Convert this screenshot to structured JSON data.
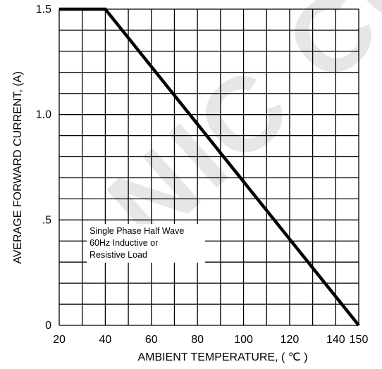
{
  "chart_data": {
    "type": "line",
    "title": "",
    "xlabel": "AMBIENT TEMPERATURE, ( ℃ )",
    "ylabel": "AVERAGE FORWARD CURRENT, (A)",
    "xlim": [
      20,
      150
    ],
    "ylim": [
      0,
      1.5
    ],
    "x_tick_labels": [
      "20",
      "40",
      "60",
      "80",
      "100",
      "120",
      "140",
      "150"
    ],
    "x_tick_values": [
      20,
      40,
      60,
      80,
      100,
      120,
      140,
      150
    ],
    "y_tick_labels": [
      "0",
      ".5",
      "1.0",
      "1.5"
    ],
    "y_tick_values": [
      0,
      0.5,
      1.0,
      1.5
    ],
    "grid": true,
    "series": [
      {
        "x": [
          20,
          40,
          150
        ],
        "y": [
          1.5,
          1.5,
          0
        ]
      }
    ],
    "annotation": [
      "Single Phase Half Wave",
      "60Hz Inductive or",
      "Resistive Load"
    ],
    "line_color": "#000000"
  },
  "watermark_text": "NIC CO.,"
}
